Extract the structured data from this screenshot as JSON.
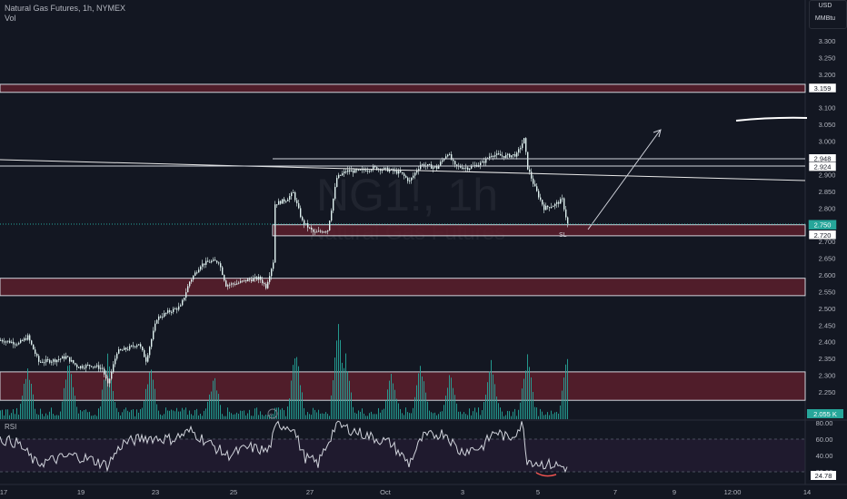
{
  "header": {
    "title": "Natural Gas Futures, 1h, NYMEX",
    "vol_label": "Vol",
    "currency": "USD",
    "unit": "MMBtu"
  },
  "watermark": {
    "symbol": "NG1!, 1h",
    "name": "Natural Gas Futures"
  },
  "colors": {
    "background": "#131722",
    "candle": "#e0f2f1",
    "zone_fill": "#5c1f2b",
    "zone_border": "#d1d4dc",
    "volume": "#26a69a",
    "rsi_line": "#d1d4dc",
    "rsi_band": "#1f1a2e"
  },
  "price_axis": {
    "ticks": [
      "3.300",
      "3.250",
      "3.200",
      "3.100",
      "3.050",
      "3.000",
      "2.900",
      "2.850",
      "2.800",
      "2.700",
      "2.650",
      "2.600",
      "2.550",
      "2.500",
      "2.450",
      "2.400",
      "2.350",
      "2.300",
      "2.250"
    ],
    "tick_values": [
      3.3,
      3.25,
      3.2,
      3.1,
      3.05,
      3.0,
      2.9,
      2.85,
      2.8,
      2.7,
      2.65,
      2.6,
      2.55,
      2.5,
      2.45,
      2.4,
      2.35,
      2.3,
      2.25
    ],
    "labels": [
      {
        "text": "3.159",
        "value": 3.159,
        "style": "white"
      },
      {
        "text": "2.948",
        "value": 2.948,
        "style": "white"
      },
      {
        "text": "2.924",
        "value": 2.924,
        "style": "white"
      },
      {
        "text": "2.750",
        "value": 2.75,
        "style": "teal"
      },
      {
        "text": "2.720",
        "value": 2.72,
        "style": "white"
      }
    ]
  },
  "volume_label": {
    "text": "2.055 K"
  },
  "rsi": {
    "label": "RSI",
    "ticks": [
      "80.00",
      "60.00",
      "40.00",
      "20.00"
    ],
    "tick_values": [
      80,
      60,
      40,
      20
    ],
    "value_label": "24.78",
    "current": 24.78
  },
  "time_axis": {
    "labels": [
      "17",
      "19",
      "23",
      "25",
      "27",
      "Oct",
      "3",
      "5",
      "7",
      "9",
      "12:00",
      "14"
    ]
  },
  "annotation": {
    "sl_label": "SL"
  },
  "zones": [
    {
      "name": "zone-3159",
      "top": 3.17,
      "bottom": 3.146
    },
    {
      "name": "zone-sl",
      "top": 2.75,
      "bottom": 2.717
    },
    {
      "name": "zone-2575",
      "top": 2.59,
      "bottom": 2.538
    },
    {
      "name": "zone-2290",
      "top": 2.31,
      "bottom": 2.225
    }
  ]
}
